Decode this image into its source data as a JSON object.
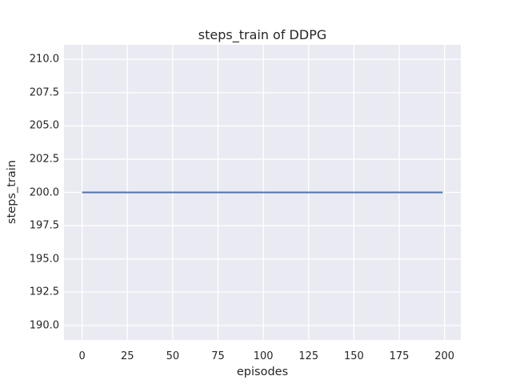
{
  "chart_data": {
    "type": "line",
    "title": "steps_train of DDPG",
    "xlabel": "episodes",
    "ylabel": "steps_train",
    "xlim": [
      -10,
      209
    ],
    "ylim": [
      188.9,
      211.1
    ],
    "xticks": {
      "values": [
        0,
        25,
        50,
        75,
        100,
        125,
        150,
        175,
        200
      ],
      "labels": [
        "0",
        "25",
        "50",
        "75",
        "100",
        "125",
        "150",
        "175",
        "200"
      ]
    },
    "yticks": {
      "values": [
        190.0,
        192.5,
        195.0,
        197.5,
        200.0,
        202.5,
        205.0,
        207.5,
        210.0
      ],
      "labels": [
        "190.0",
        "192.5",
        "195.0",
        "197.5",
        "200.0",
        "202.5",
        "205.0",
        "207.5",
        "210.0"
      ]
    },
    "grid": true,
    "legend": false,
    "series": [
      {
        "name": "steps_train",
        "color": "#4c72b0",
        "line_width": 2,
        "points": [
          {
            "x": 0,
            "y": 200
          },
          {
            "x": 199,
            "y": 200
          }
        ]
      }
    ],
    "colors": {
      "figure_background": "#ffffff",
      "plot_background": "#eaeaf2",
      "gridline": "#ffffff",
      "text": "#262626"
    }
  }
}
